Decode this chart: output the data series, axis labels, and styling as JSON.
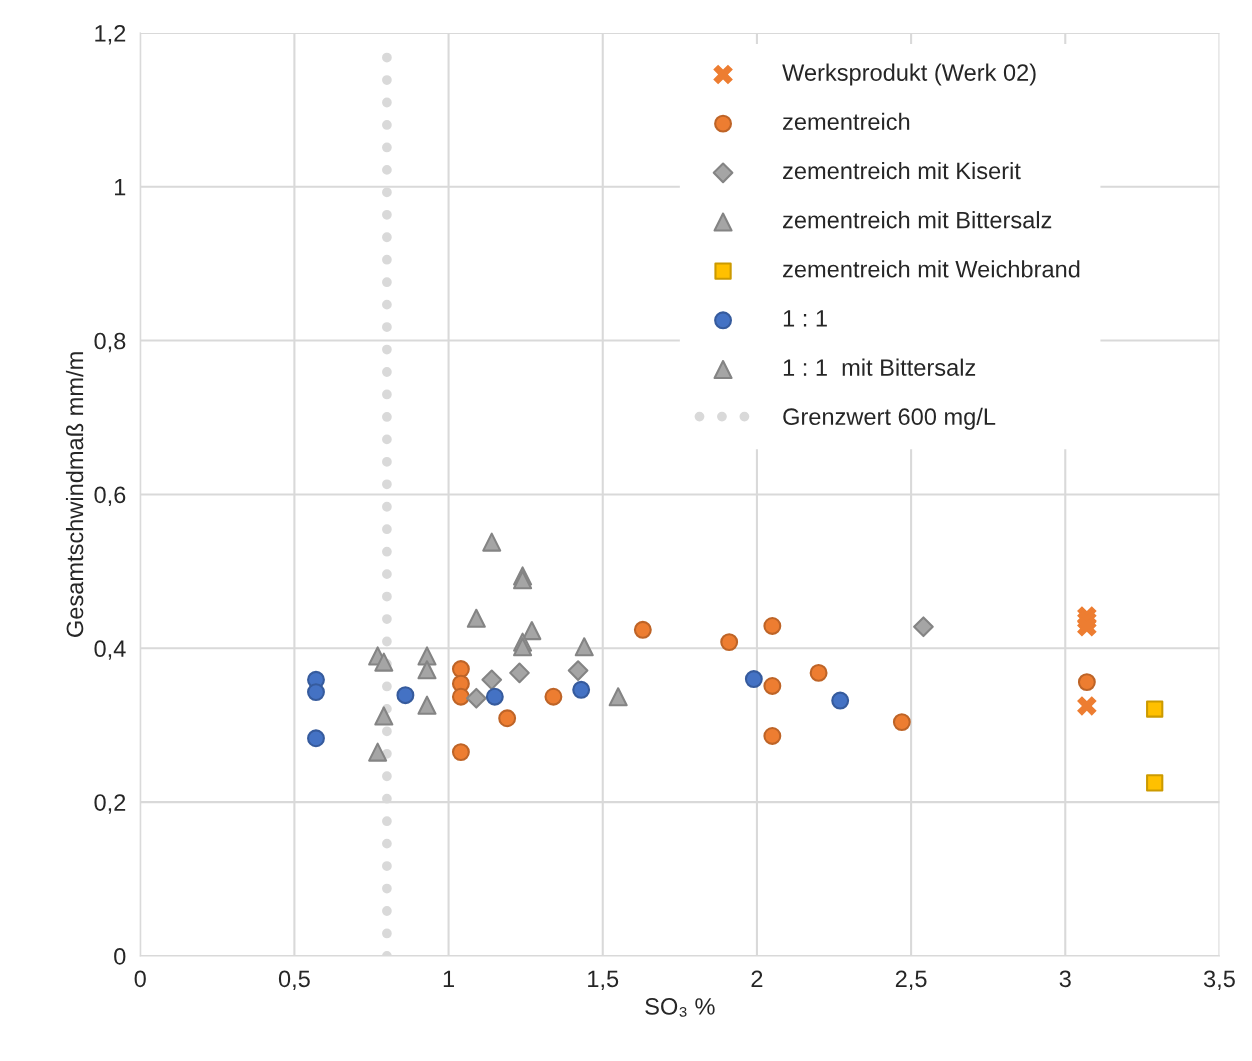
{
  "chart_data": {
    "type": "scatter",
    "xlabel": "SO₃ %",
    "ylabel": "Gesamtschwindmaß mm/m",
    "xlim": [
      0,
      3.5
    ],
    "ylim": [
      0,
      1.2
    ],
    "xticks": [
      0,
      {
        "value": 0.5,
        "label": "0,5"
      },
      1,
      {
        "value": 1.5,
        "label": "1,5"
      },
      2,
      {
        "value": 2.5,
        "label": "2,5"
      },
      3,
      {
        "value": 3.5,
        "label": "3,5"
      }
    ],
    "yticks": [
      0,
      {
        "value": 0.2,
        "label": "0,2"
      },
      {
        "value": 0.4,
        "label": "0,4"
      },
      {
        "value": 0.6,
        "label": "0,6"
      },
      {
        "value": 0.8,
        "label": "0,8"
      },
      1,
      {
        "value": 1.2,
        "label": "1,2"
      }
    ],
    "grid": true,
    "legend": "top right",
    "series": [
      {
        "name": "Werksprodukt (Werk 02)",
        "marker": "cross",
        "color": "#ed7d31",
        "x": [
          3.07,
          3.07,
          3.07,
          3.07
        ],
        "values": [
          0.442,
          0.436,
          0.428,
          0.325
        ]
      },
      {
        "name": "zementreich",
        "marker": "circle",
        "color": "#ed7d31",
        "x": [
          1.04,
          1.04,
          1.04,
          1.04,
          1.19,
          1.34,
          1.63,
          1.91,
          2.05,
          2.05,
          2.05,
          2.2,
          2.47,
          3.07
        ],
        "values": [
          0.373,
          0.354,
          0.337,
          0.265,
          0.309,
          0.337,
          0.424,
          0.408,
          0.429,
          0.351,
          0.286,
          0.368,
          0.304,
          0.356
        ]
      },
      {
        "name": "zementreich mit Kiserit",
        "marker": "diamond",
        "color": "#a5a5a5",
        "x": [
          1.09,
          1.14,
          1.23,
          1.42,
          2.54
        ],
        "values": [
          0.335,
          0.359,
          0.368,
          0.371,
          0.428
        ]
      },
      {
        "name": "zementreich mit Bittersalz",
        "marker": "triangle",
        "color": "#a5a5a5",
        "x": [
          1.14,
          1.24,
          1.24,
          1.09,
          1.27,
          1.24,
          1.24,
          1.44,
          1.55
        ],
        "values": [
          0.538,
          0.494,
          0.489,
          0.439,
          0.423,
          0.408,
          0.402,
          0.402,
          0.337
        ]
      },
      {
        "name": "zementreich mit Weichbrand",
        "marker": "square",
        "color": "#ffc000",
        "x": [
          3.29,
          3.29
        ],
        "values": [
          0.321,
          0.225
        ]
      },
      {
        "name": "1 : 1",
        "marker": "circle",
        "color": "#4472c4",
        "x": [
          0.57,
          0.57,
          0.57,
          0.86,
          1.15,
          1.43,
          1.99,
          2.27
        ],
        "values": [
          0.359,
          0.343,
          0.283,
          0.339,
          0.337,
          0.346,
          0.36,
          0.332
        ]
      },
      {
        "name": "1 : 1  mit Bittersalz",
        "marker": "triangle",
        "color": "#a5a5a5",
        "x": [
          0.77,
          0.79,
          0.93,
          0.93,
          0.79,
          0.93,
          0.77
        ],
        "values": [
          0.39,
          0.382,
          0.39,
          0.372,
          0.312,
          0.326,
          0.265
        ]
      },
      {
        "name": "Grenzwert 600 mg/L",
        "type": "line",
        "line_style": "dotted",
        "color": "#d9d9d9",
        "x": [
          0.8,
          0.8
        ],
        "values": [
          0,
          1.18
        ]
      }
    ]
  }
}
